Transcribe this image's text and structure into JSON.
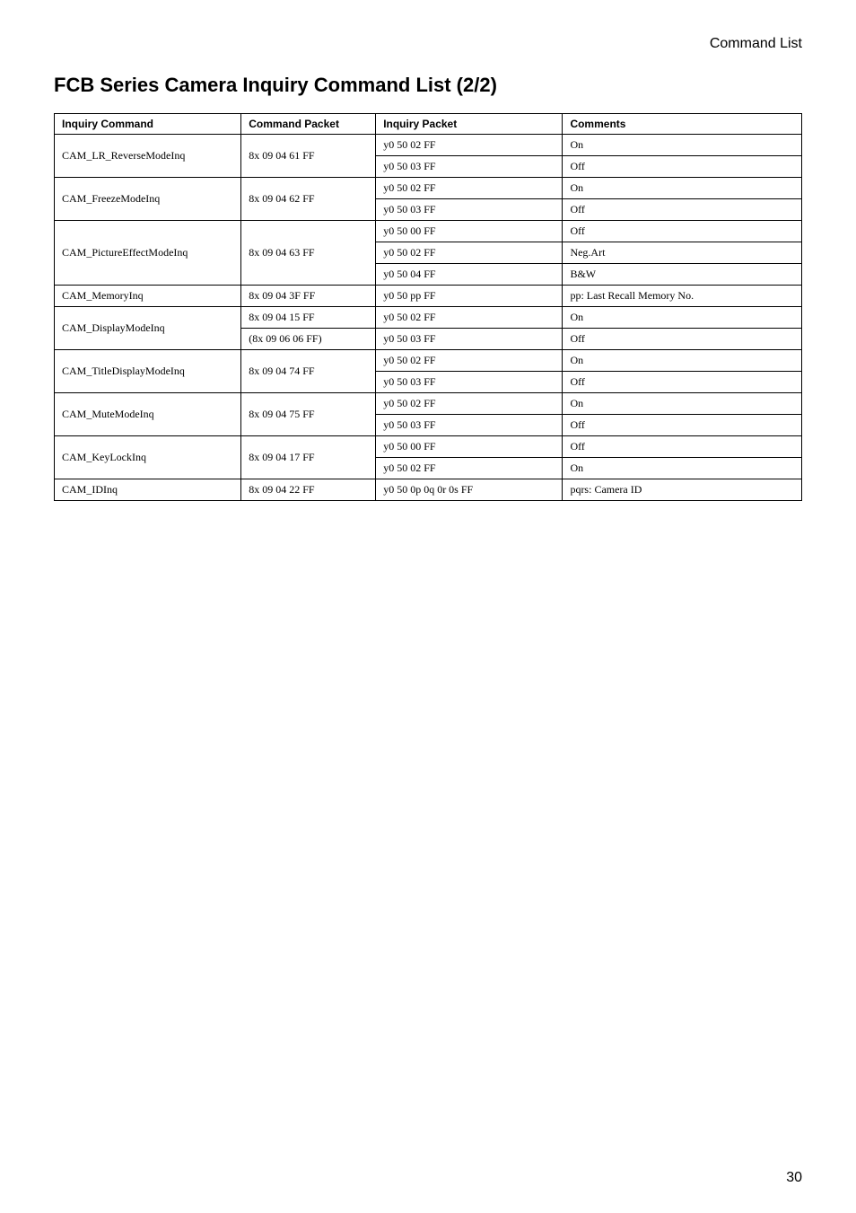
{
  "header": {
    "section": "Command List"
  },
  "title": "FCB Series Camera Inquiry Command List (2/2)",
  "table": {
    "headers": {
      "inquiry_command": "Inquiry Command",
      "command_packet": "Command Packet",
      "inquiry_packet": "Inquiry Packet",
      "comments": "Comments"
    },
    "rows": [
      {
        "cmd": "CAM_LR_ReverseModeInq",
        "cmd_rowspan": 2,
        "pkt": "8x 09 04 61 FF",
        "pkt_rowspan": 2,
        "inq": "y0 50 02 FF",
        "com": "On"
      },
      {
        "inq": "y0 50 03 FF",
        "com": "Off"
      },
      {
        "cmd": "CAM_FreezeModeInq",
        "cmd_rowspan": 2,
        "pkt": "8x 09 04 62 FF",
        "pkt_rowspan": 2,
        "inq": "y0 50 02 FF",
        "com": "On"
      },
      {
        "inq": "y0 50 03 FF",
        "com": "Off"
      },
      {
        "cmd": "CAM_PictureEffectModeInq",
        "cmd_rowspan": 3,
        "pkt": "8x 09 04 63 FF",
        "pkt_rowspan": 3,
        "inq": "y0 50 00 FF",
        "com": "Off"
      },
      {
        "inq": "y0 50 02 FF",
        "com": "Neg.Art"
      },
      {
        "inq": "y0 50 04 FF",
        "com": "B&W"
      },
      {
        "cmd": "CAM_MemoryInq",
        "cmd_rowspan": 1,
        "pkt": "8x 09 04 3F FF",
        "pkt_rowspan": 1,
        "inq": "y0 50 pp FF",
        "com": "pp: Last Recall Memory No."
      },
      {
        "cmd": "CAM_DisplayModeInq",
        "cmd_rowspan": 2,
        "pkt": "8x 09 04 15 FF",
        "pkt_rowspan": 1,
        "inq": "y0 50 02 FF",
        "com": "On"
      },
      {
        "pkt": "(8x 09 06 06 FF)",
        "pkt_rowspan": 1,
        "inq": "y0 50 03 FF",
        "com": "Off"
      },
      {
        "cmd": "CAM_TitleDisplayModeInq",
        "cmd_rowspan": 2,
        "pkt": "8x 09 04 74 FF",
        "pkt_rowspan": 2,
        "inq": "y0 50 02 FF",
        "com": "On"
      },
      {
        "inq": "y0 50 03 FF",
        "com": "Off"
      },
      {
        "cmd": "CAM_MuteModeInq",
        "cmd_rowspan": 2,
        "pkt": "8x 09 04 75 FF",
        "pkt_rowspan": 2,
        "inq": "y0 50 02 FF",
        "com": "On"
      },
      {
        "inq": "y0 50 03 FF",
        "com": "Off"
      },
      {
        "cmd": "CAM_KeyLockInq",
        "cmd_rowspan": 2,
        "pkt": "8x 09 04 17 FF",
        "pkt_rowspan": 2,
        "inq": "y0 50 00 FF",
        "com": "Off"
      },
      {
        "inq": "y0 50 02 FF",
        "com": "On"
      },
      {
        "cmd": "CAM_IDInq",
        "cmd_rowspan": 1,
        "pkt": "8x 09 04 22 FF",
        "pkt_rowspan": 1,
        "inq": "y0 50 0p 0q 0r 0s FF",
        "com": "pqrs: Camera ID"
      }
    ]
  },
  "page_number": "30"
}
